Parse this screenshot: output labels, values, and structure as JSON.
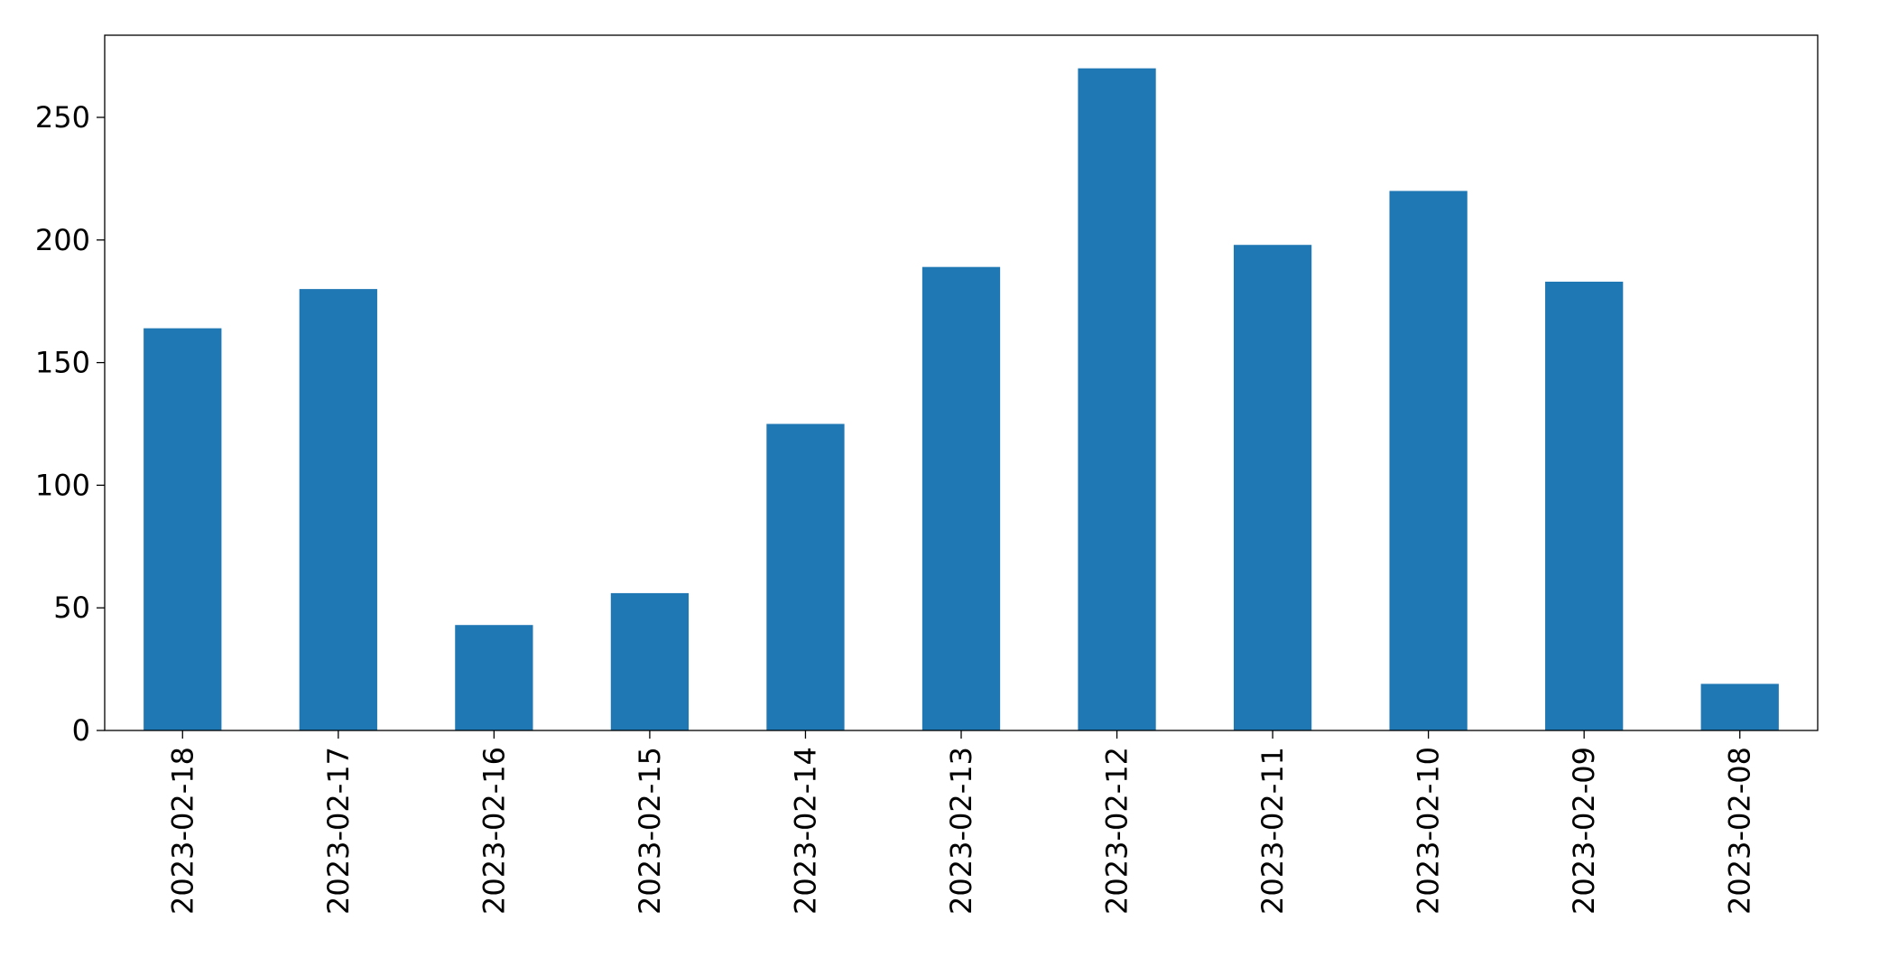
{
  "chart_data": {
    "type": "bar",
    "categories": [
      "2023-02-18",
      "2023-02-17",
      "2023-02-16",
      "2023-02-15",
      "2023-02-14",
      "2023-02-13",
      "2023-02-12",
      "2023-02-11",
      "2023-02-10",
      "2023-02-09",
      "2023-02-08"
    ],
    "values": [
      164,
      180,
      43,
      56,
      125,
      189,
      270,
      198,
      220,
      183,
      19
    ],
    "color": "#1f77b4",
    "ylim": [
      0,
      283.5
    ],
    "yticks": [
      0,
      50,
      100,
      150,
      200,
      250
    ],
    "grid": false
  }
}
